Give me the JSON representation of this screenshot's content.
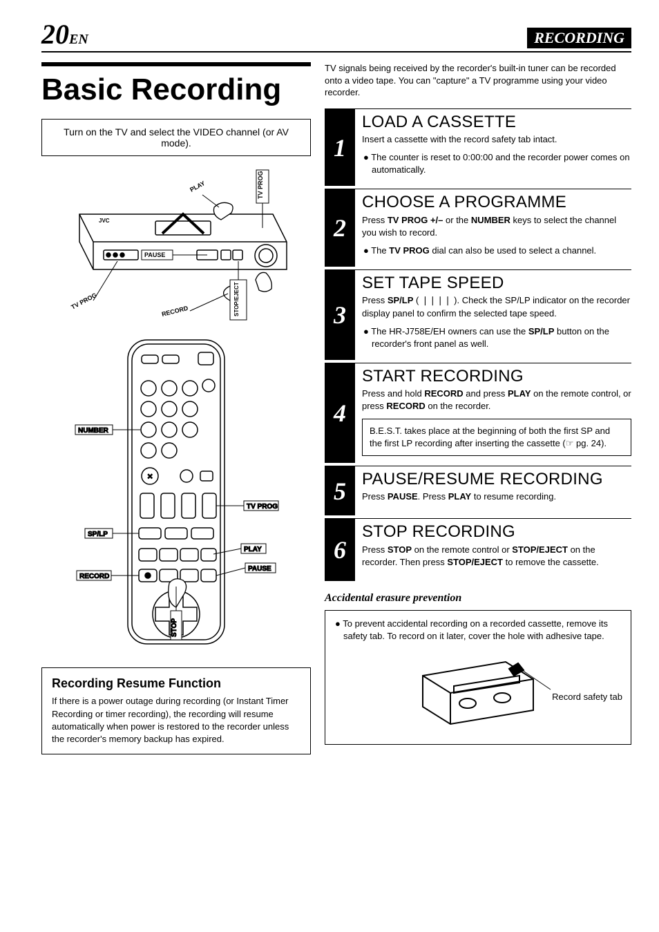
{
  "header": {
    "page": "20",
    "suffix": "EN",
    "section": "RECORDING"
  },
  "title": "Basic Recording",
  "tv_note": "Turn on the TV and select the VIDEO channel (or AV mode).",
  "intro": "TV signals being received by the recorder's built-in tuner can be recorded onto a video tape. You can \"capture\" a TV programme using your video recorder.",
  "steps": [
    {
      "num": "1",
      "title": "LOAD A CASSETTE",
      "desc": "Insert a cassette with the record safety tab intact.",
      "bullets": [
        "The counter is reset to 0:00:00 and the recorder power comes on automatically."
      ]
    },
    {
      "num": "2",
      "title": "CHOOSE A PROGRAMME",
      "desc_html": "Press <b>TV PROG +/–</b> or the <b>NUMBER</b> keys to select the channel you wish to record.",
      "bullets_html": [
        "The <b>TV PROG</b> dial can also be used to select a channel."
      ]
    },
    {
      "num": "3",
      "title": "SET TAPE SPEED",
      "desc_html": "Press <b>SP/LP</b> ( ❘❘❘❘ ). Check the SP/LP indicator on the recorder display panel to confirm the selected tape speed.",
      "bullets_html": [
        "The HR-J758E/EH owners can use the <b>SP/LP</b> button on the recorder's front panel as well."
      ]
    },
    {
      "num": "4",
      "title": "START RECORDING",
      "desc_html": "Press and hold <b>RECORD</b> and press <b>PLAY</b> on the remote control, or press <b>RECORD</b> on the recorder.",
      "note": "B.E.S.T. takes place at the beginning of both the first SP and the first LP recording after inserting the cassette (☞ pg. 24)."
    },
    {
      "num": "5",
      "title": "PAUSE/RESUME RECORDING",
      "desc_html": "Press <b>PAUSE</b>. Press <b>PLAY</b> to resume recording."
    },
    {
      "num": "6",
      "title": "STOP RECORDING",
      "desc_html": "Press <b>STOP</b> on the remote control or <b>STOP/EJECT</b> on the recorder. Then press <b>STOP/EJECT</b> to remove the cassette."
    }
  ],
  "accidental": {
    "heading": "Accidental erasure prevention",
    "text": "To prevent accidental recording on a recorded cassette, remove its safety tab. To record on it later, cover the hole with adhesive tape.",
    "label": "Record safety tab"
  },
  "resume": {
    "heading": "Recording Resume Function",
    "text": "If there is a power outage during recording (or Instant Timer Recording or timer recording), the recording will resume automatically when power is restored to the recorder unless the recorder's memory backup has expired."
  },
  "vcr_labels": {
    "play": "PLAY",
    "tv_prog": "TV PROG",
    "pause": "PAUSE",
    "record": "RECORD",
    "stop_eject": "STOP/EJECT",
    "tv_prog2": "TV PROG",
    "brand": "JVC"
  },
  "remote_labels": {
    "number": "NUMBER",
    "tv_prog": "TV PROG",
    "sp_lp": "SP/LP",
    "play": "PLAY",
    "pause": "PAUSE",
    "record": "RECORD",
    "stop": "STOP"
  },
  "colors": {
    "fg": "#000000",
    "bg": "#ffffff"
  }
}
